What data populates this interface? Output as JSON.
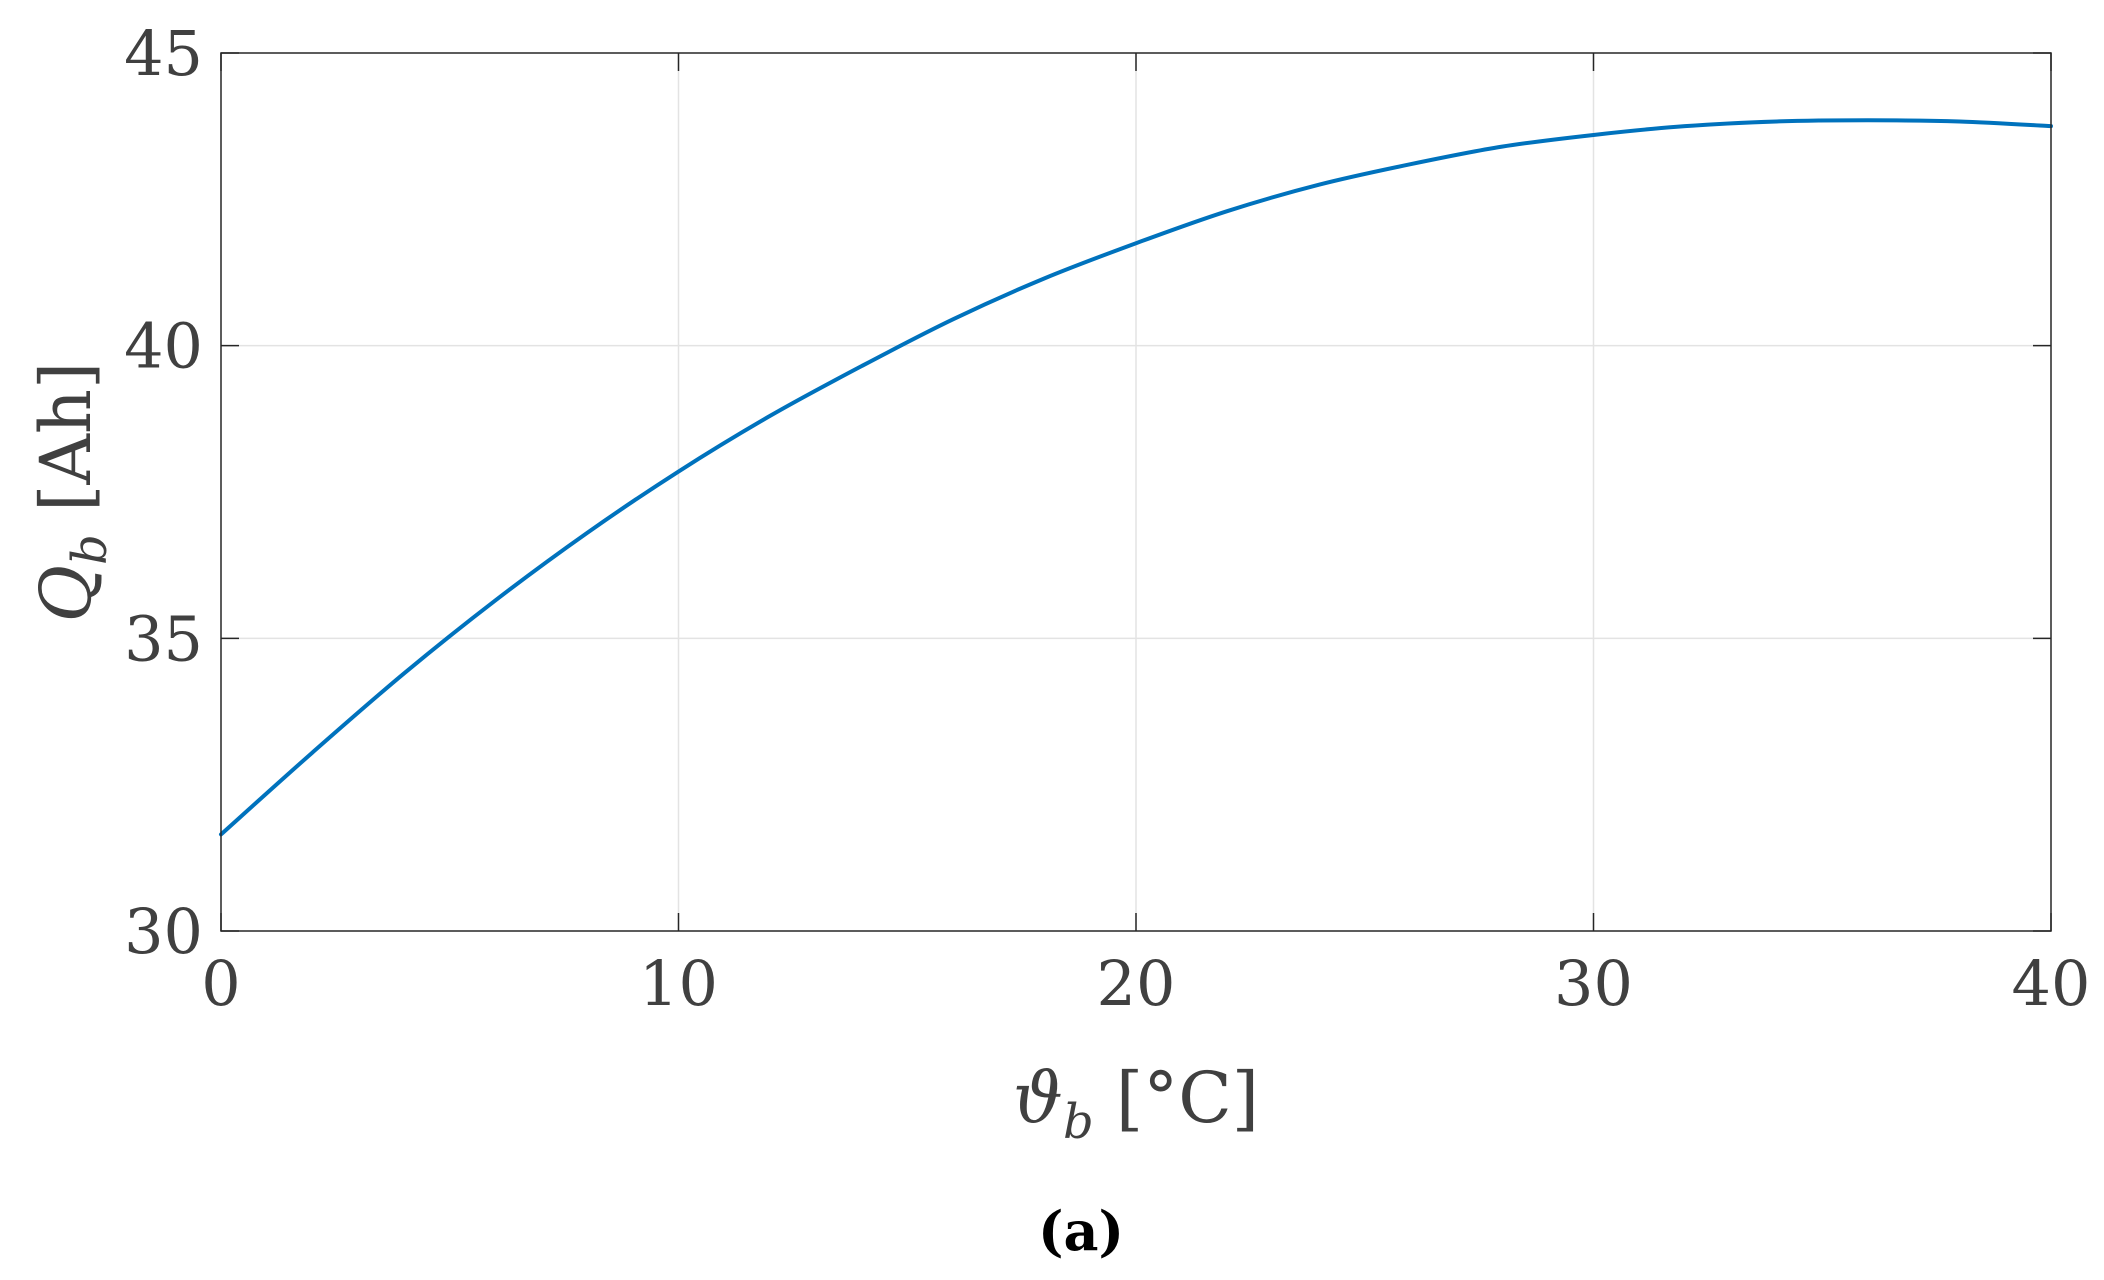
{
  "chart_data": {
    "type": "line",
    "caption": "(a)",
    "xlabel": "ϑb [°C]",
    "xlabel_parts": {
      "symbol": "ϑ",
      "subscript": "b",
      "unit": " [°C]"
    },
    "ylabel": "Qb [Ah]",
    "ylabel_parts": {
      "symbol": "Q",
      "subscript": "b",
      "unit": " [Ah]"
    },
    "xlim": [
      0,
      40
    ],
    "ylim": [
      30,
      45
    ],
    "xticks": [
      0,
      10,
      20,
      30,
      40
    ],
    "yticks": [
      30,
      35,
      40,
      45
    ],
    "grid": true,
    "line_color": "#0072BD",
    "series": [
      {
        "x": [
          0,
          2,
          4,
          6,
          8,
          10,
          12,
          14,
          16,
          18,
          20,
          22,
          24,
          26,
          28,
          30,
          32,
          34,
          36,
          38,
          40
        ],
        "values": [
          31.65,
          33.05,
          34.4,
          35.65,
          36.8,
          37.85,
          38.8,
          39.65,
          40.45,
          41.15,
          41.75,
          42.3,
          42.75,
          43.1,
          43.4,
          43.6,
          43.75,
          43.83,
          43.85,
          43.83,
          43.75
        ]
      }
    ]
  }
}
